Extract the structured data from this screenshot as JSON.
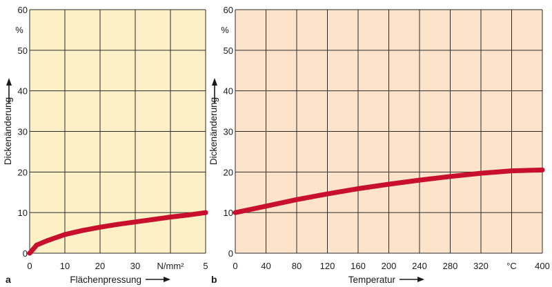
{
  "chart_data": [
    {
      "type": "line",
      "panel_label": "a",
      "background": "#fdf0c6",
      "line_color": "#c8102e",
      "xlabel": "Flächenpressung",
      "xunit": "N/mm²",
      "ylabel": "Dickenänderung",
      "yunit": "%",
      "xlim": [
        0,
        50
      ],
      "ylim": [
        0,
        60
      ],
      "x_ticks": [
        "0",
        "10",
        "20",
        "30",
        "",
        "5"
      ],
      "y_ticks": [
        "0",
        "10",
        "20",
        "30",
        "40",
        "50",
        "60"
      ],
      "grid": true,
      "series": [
        {
          "x": [
            0,
            2,
            5,
            10,
            15,
            20,
            25,
            30,
            35,
            40,
            45,
            50
          ],
          "y": [
            0,
            2.0,
            3.1,
            4.6,
            5.6,
            6.4,
            7.1,
            7.7,
            8.3,
            8.9,
            9.4,
            10.0
          ]
        }
      ]
    },
    {
      "type": "line",
      "panel_label": "b",
      "background": "#fce3c9",
      "line_color": "#c8102e",
      "xlabel": "Temperatur",
      "xunit": "°C",
      "ylabel": "Dickenänderung",
      "yunit": "%",
      "xlim": [
        0,
        400
      ],
      "ylim": [
        0,
        60
      ],
      "x_ticks": [
        "0",
        "40",
        "80",
        "120",
        "160",
        "200",
        "240",
        "280",
        "320",
        "",
        "400"
      ],
      "y_ticks": [
        "0",
        "10",
        "20",
        "30",
        "40",
        "50",
        "60"
      ],
      "grid": true,
      "series": [
        {
          "x": [
            0,
            40,
            80,
            120,
            160,
            200,
            240,
            280,
            320,
            360,
            400
          ],
          "y": [
            10.0,
            11.6,
            13.2,
            14.6,
            15.9,
            17.0,
            18.0,
            18.9,
            19.7,
            20.3,
            20.5
          ]
        }
      ]
    }
  ]
}
